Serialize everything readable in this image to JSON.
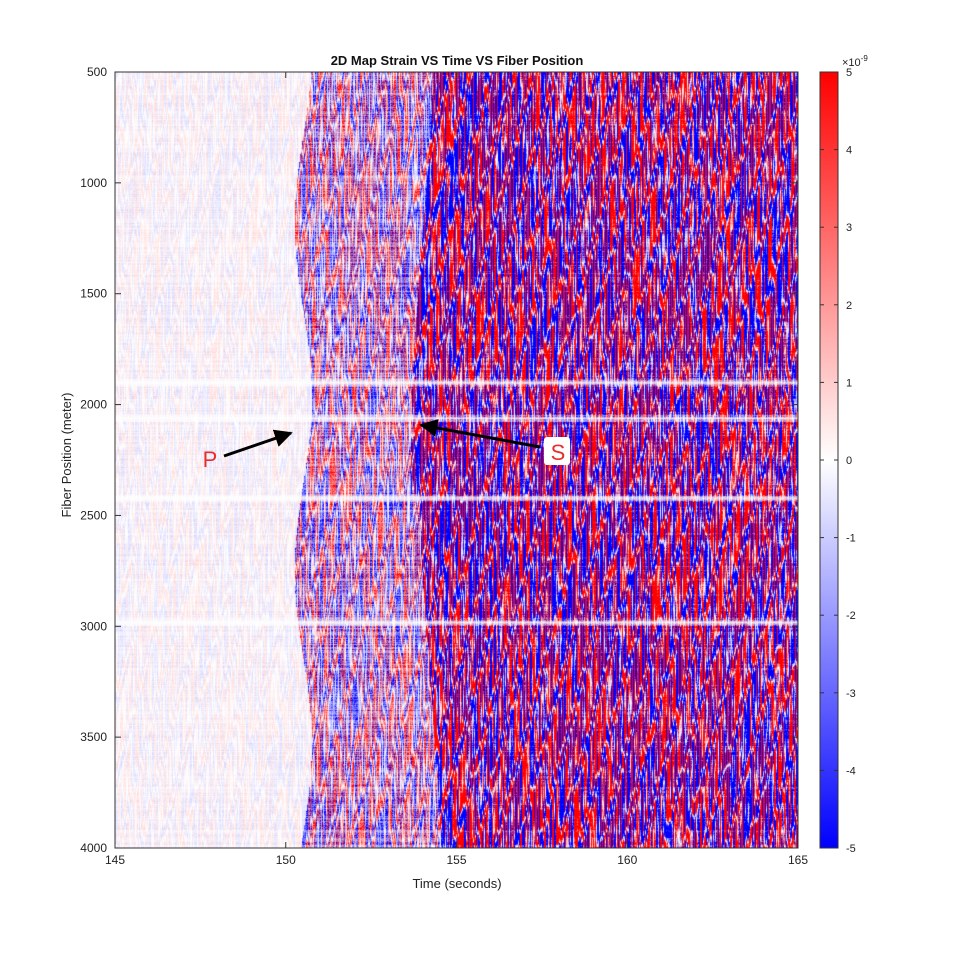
{
  "chart_data": {
    "type": "heatmap",
    "title": "2D Map Strain VS Time VS Fiber Position",
    "xlabel": "Time (seconds)",
    "ylabel": "Fiber Position (meter)",
    "xlim": [
      145,
      165
    ],
    "ylim": [
      500,
      4000
    ],
    "y_reversed": true,
    "xticks": [
      145,
      150,
      155,
      160,
      165
    ],
    "yticks": [
      500,
      1000,
      1500,
      2000,
      2500,
      3000,
      3500,
      4000
    ],
    "colorbar": {
      "min": -5,
      "max": 5,
      "ticks": [
        5,
        4,
        3,
        2,
        1,
        0,
        -1,
        -2,
        -3,
        -4,
        -5
      ],
      "exponent_label": "×10",
      "exponent": "-9",
      "colors": {
        "low": "#0000ff",
        "mid": "#ffffff",
        "high": "#ff0000"
      }
    },
    "phase_arrivals": {
      "p_wave_time": 150.5,
      "s_wave_time": 154.0
    },
    "quiet_bands_fiber_position": [
      1900,
      2060,
      2420,
      2980
    ],
    "annotations": [
      {
        "text": "P",
        "arrow_to": {
          "x": 150.3,
          "y": 2130
        }
      },
      {
        "text": "S",
        "arrow_to": {
          "x": 153.9,
          "y": 2090
        }
      }
    ]
  }
}
